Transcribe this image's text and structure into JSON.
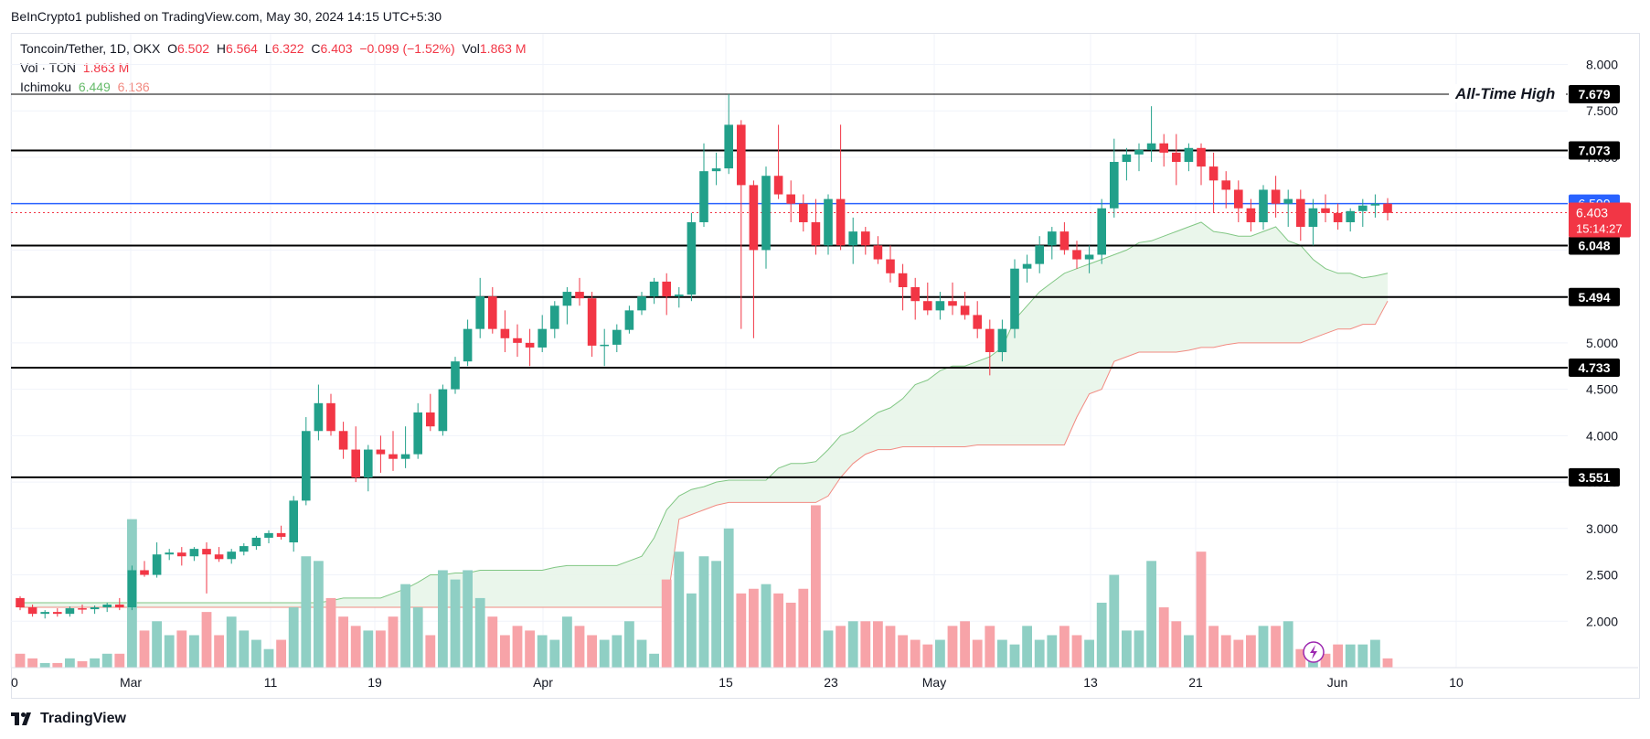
{
  "attribution": "BeInCrypto1 published on TradingView.com, May 30, 2024 14:15 UTC+5:30",
  "legend": {
    "symbol": "Toncoin/Tether, 1D, OKX",
    "open_label": "O",
    "open": "6.502",
    "high_label": "H",
    "high": "6.564",
    "low_label": "L",
    "low": "6.322",
    "close_label": "C",
    "close": "6.403",
    "change": "−0.099 (−1.52%)",
    "vol_label": "Vol",
    "vol": "1.863 M",
    "vol_series": "Vol · TON",
    "vol_series_value": "1.863 M",
    "ichimoku": "Ichimoku",
    "ichimoku_a": "6.449",
    "ichimoku_b": "6.136"
  },
  "branding": "TradingView",
  "colors": {
    "up": "#22a08a",
    "down": "#f23645",
    "vol_up": "#8fcfc4",
    "vol_down": "#f7a3a8",
    "cloud": "#e8f5e9",
    "span_a": "#81c784",
    "span_b": "#f28b82",
    "ref": "#2962ff"
  },
  "chart_data": {
    "type": "candlestick",
    "title": "Toncoin/Tether, 1D, OKX",
    "ylim": [
      1.5,
      8.33
    ],
    "y_ticks": [
      "8.000",
      "7.500",
      "7.000",
      "6.500",
      "6.000",
      "5.500",
      "5.000",
      "4.500",
      "4.000",
      "3.500",
      "3.000",
      "2.500",
      "2.000"
    ],
    "x_ticks": [
      "0",
      "Mar",
      "11",
      "19",
      "Apr",
      "15",
      "23",
      "May",
      "13",
      "21",
      "Jun",
      "10"
    ],
    "levels": [
      {
        "value": 7.679,
        "label": "7.679",
        "note": "All-Time High"
      },
      {
        "value": 7.073,
        "label": "7.073"
      },
      {
        "value": 6.048,
        "label": "6.048"
      },
      {
        "value": 5.494,
        "label": "5.494"
      },
      {
        "value": 4.733,
        "label": "4.733"
      },
      {
        "value": 3.551,
        "label": "3.551"
      }
    ],
    "reference_line": {
      "value": 6.5,
      "label": "6.500"
    },
    "last_price": {
      "value": 6.403,
      "label": "6.403",
      "countdown": "15:14:27"
    },
    "candles": [
      [
        2.25,
        2.27,
        2.12,
        2.15
      ],
      [
        2.15,
        2.18,
        2.05,
        2.08
      ],
      [
        2.08,
        2.12,
        2.03,
        2.1
      ],
      [
        2.1,
        2.14,
        2.05,
        2.08
      ],
      [
        2.08,
        2.16,
        2.05,
        2.14
      ],
      [
        2.14,
        2.18,
        2.08,
        2.13
      ],
      [
        2.13,
        2.17,
        2.08,
        2.15
      ],
      [
        2.15,
        2.2,
        2.1,
        2.18
      ],
      [
        2.18,
        2.25,
        2.12,
        2.15
      ],
      [
        2.15,
        2.6,
        2.12,
        2.55
      ],
      [
        2.55,
        2.65,
        2.48,
        2.5
      ],
      [
        2.5,
        2.85,
        2.47,
        2.72
      ],
      [
        2.72,
        2.78,
        2.66,
        2.74
      ],
      [
        2.74,
        2.8,
        2.6,
        2.7
      ],
      [
        2.7,
        2.8,
        2.65,
        2.78
      ],
      [
        2.78,
        2.85,
        2.3,
        2.72
      ],
      [
        2.72,
        2.8,
        2.64,
        2.67
      ],
      [
        2.67,
        2.78,
        2.62,
        2.75
      ],
      [
        2.75,
        2.84,
        2.71,
        2.81
      ],
      [
        2.81,
        2.92,
        2.77,
        2.9
      ],
      [
        2.9,
        2.98,
        2.84,
        2.95
      ],
      [
        2.95,
        3.03,
        2.88,
        2.91
      ],
      [
        2.85,
        3.35,
        2.75,
        3.3
      ],
      [
        3.3,
        4.2,
        3.25,
        4.05
      ],
      [
        4.05,
        4.55,
        3.95,
        4.35
      ],
      [
        4.35,
        4.45,
        4.0,
        4.05
      ],
      [
        4.05,
        4.15,
        3.75,
        3.85
      ],
      [
        3.85,
        4.1,
        3.5,
        3.55
      ],
      [
        3.55,
        3.9,
        3.4,
        3.85
      ],
      [
        3.85,
        4.0,
        3.6,
        3.8
      ],
      [
        3.8,
        4.05,
        3.62,
        3.75
      ],
      [
        3.75,
        4.1,
        3.65,
        3.8
      ],
      [
        3.8,
        4.35,
        3.75,
        4.25
      ],
      [
        4.25,
        4.45,
        4.05,
        4.1
      ],
      [
        4.05,
        4.55,
        4.0,
        4.5
      ],
      [
        4.5,
        4.85,
        4.45,
        4.8
      ],
      [
        4.8,
        5.25,
        4.75,
        5.15
      ],
      [
        5.15,
        5.7,
        5.05,
        5.5
      ],
      [
        5.5,
        5.6,
        5.1,
        5.15
      ],
      [
        5.15,
        5.35,
        4.9,
        5.05
      ],
      [
        5.05,
        5.2,
        4.85,
        5.0
      ],
      [
        5.0,
        5.15,
        4.75,
        4.95
      ],
      [
        4.95,
        5.3,
        4.9,
        5.15
      ],
      [
        5.15,
        5.45,
        5.05,
        5.4
      ],
      [
        5.4,
        5.6,
        5.2,
        5.55
      ],
      [
        5.55,
        5.7,
        5.4,
        5.48
      ],
      [
        5.48,
        5.55,
        4.85,
        4.97
      ],
      [
        4.97,
        5.15,
        4.75,
        4.98
      ],
      [
        4.98,
        5.2,
        4.9,
        5.14
      ],
      [
        5.14,
        5.4,
        5.1,
        5.35
      ],
      [
        5.35,
        5.55,
        5.3,
        5.5
      ],
      [
        5.5,
        5.7,
        5.42,
        5.66
      ],
      [
        5.66,
        5.75,
        5.3,
        5.5
      ],
      [
        5.5,
        5.6,
        5.38,
        5.52
      ],
      [
        5.52,
        6.4,
        5.45,
        6.3
      ],
      [
        6.3,
        7.15,
        6.25,
        6.85
      ],
      [
        6.85,
        7.05,
        6.7,
        6.88
      ],
      [
        6.88,
        7.68,
        6.82,
        7.35
      ],
      [
        7.35,
        7.4,
        5.15,
        6.7
      ],
      [
        6.7,
        6.75,
        5.05,
        6.0
      ],
      [
        6.0,
        6.9,
        5.8,
        6.8
      ],
      [
        6.8,
        7.35,
        6.55,
        6.6
      ],
      [
        6.6,
        6.75,
        6.3,
        6.5
      ],
      [
        6.5,
        6.6,
        6.2,
        6.3
      ],
      [
        6.3,
        6.55,
        5.95,
        6.05
      ],
      [
        6.05,
        6.6,
        5.95,
        6.55
      ],
      [
        6.55,
        7.35,
        6.0,
        6.05
      ],
      [
        6.05,
        6.35,
        5.85,
        6.2
      ],
      [
        6.2,
        6.25,
        5.95,
        6.05
      ],
      [
        6.05,
        6.15,
        5.85,
        5.9
      ],
      [
        5.9,
        6.05,
        5.65,
        5.75
      ],
      [
        5.75,
        5.85,
        5.35,
        5.6
      ],
      [
        5.6,
        5.7,
        5.25,
        5.45
      ],
      [
        5.45,
        5.65,
        5.3,
        5.35
      ],
      [
        5.35,
        5.55,
        5.25,
        5.45
      ],
      [
        5.45,
        5.65,
        5.3,
        5.4
      ],
      [
        5.4,
        5.55,
        5.25,
        5.3
      ],
      [
        5.3,
        5.45,
        5.05,
        5.15
      ],
      [
        5.15,
        5.25,
        4.65,
        4.9
      ],
      [
        4.9,
        5.25,
        4.8,
        5.15
      ],
      [
        5.15,
        5.9,
        5.05,
        5.8
      ],
      [
        5.8,
        5.95,
        5.65,
        5.85
      ],
      [
        5.85,
        6.15,
        5.75,
        6.05
      ],
      [
        6.05,
        6.25,
        5.9,
        6.2
      ],
      [
        6.2,
        6.3,
        5.95,
        6.0
      ],
      [
        6.0,
        6.1,
        5.8,
        5.9
      ],
      [
        5.9,
        6.05,
        5.75,
        5.95
      ],
      [
        5.95,
        6.55,
        5.85,
        6.45
      ],
      [
        6.45,
        7.2,
        6.35,
        6.95
      ],
      [
        6.95,
        7.1,
        6.75,
        7.03
      ],
      [
        7.03,
        7.15,
        6.85,
        7.08
      ],
      [
        7.08,
        7.55,
        6.95,
        7.15
      ],
      [
        7.15,
        7.25,
        6.9,
        7.05
      ],
      [
        7.05,
        7.25,
        6.7,
        6.95
      ],
      [
        6.95,
        7.15,
        6.85,
        7.1
      ],
      [
        7.1,
        7.15,
        6.7,
        6.9
      ],
      [
        6.9,
        7.05,
        6.4,
        6.75
      ],
      [
        6.75,
        6.85,
        6.45,
        6.65
      ],
      [
        6.65,
        6.75,
        6.3,
        6.45
      ],
      [
        6.45,
        6.55,
        6.2,
        6.3
      ],
      [
        6.3,
        6.7,
        6.22,
        6.65
      ],
      [
        6.65,
        6.8,
        6.35,
        6.5
      ],
      [
        6.5,
        6.65,
        6.25,
        6.55
      ],
      [
        6.55,
        6.65,
        6.1,
        6.25
      ],
      [
        6.25,
        6.55,
        6.05,
        6.45
      ],
      [
        6.45,
        6.6,
        6.3,
        6.4
      ],
      [
        6.4,
        6.5,
        6.22,
        6.3
      ],
      [
        6.3,
        6.45,
        6.2,
        6.42
      ],
      [
        6.42,
        6.55,
        6.25,
        6.48
      ],
      [
        6.48,
        6.6,
        6.35,
        6.5
      ],
      [
        6.5,
        6.56,
        6.32,
        6.4
      ]
    ],
    "volume": [
      1.65,
      1.6,
      1.55,
      1.55,
      1.6,
      1.57,
      1.6,
      1.65,
      1.65,
      3.1,
      1.9,
      2.0,
      1.85,
      1.9,
      1.85,
      2.1,
      1.85,
      2.05,
      1.9,
      1.8,
      1.7,
      1.8,
      2.15,
      2.7,
      2.65,
      2.25,
      2.05,
      1.95,
      1.9,
      1.9,
      2.05,
      2.4,
      2.15,
      1.85,
      2.55,
      2.45,
      2.55,
      2.25,
      2.05,
      1.85,
      1.95,
      1.9,
      1.85,
      1.8,
      2.05,
      1.95,
      1.85,
      1.8,
      1.85,
      2.0,
      1.8,
      1.65,
      2.45,
      2.75,
      2.3,
      2.7,
      2.65,
      3.0,
      2.3,
      2.35,
      2.4,
      2.3,
      2.2,
      2.35,
      3.25,
      1.9,
      1.95,
      2.0,
      2.0,
      2.0,
      1.95,
      1.85,
      1.8,
      1.75,
      1.8,
      1.95,
      2.0,
      1.8,
      1.95,
      1.8,
      1.75,
      1.95,
      1.8,
      1.85,
      1.95,
      1.85,
      1.8,
      2.2,
      2.5,
      1.9,
      1.9,
      2.65,
      2.15,
      2.0,
      1.85,
      2.75,
      1.95,
      1.85,
      1.8,
      1.85,
      1.95,
      1.95,
      2.0,
      1.7,
      1.65,
      1.65,
      1.75,
      1.75,
      1.75,
      1.8,
      1.6
    ],
    "cloud_top": [
      2.2,
      2.2,
      2.2,
      2.2,
      2.2,
      2.2,
      2.2,
      2.2,
      2.2,
      2.2,
      2.2,
      2.2,
      2.2,
      2.2,
      2.2,
      2.2,
      2.2,
      2.2,
      2.2,
      2.2,
      2.2,
      2.2,
      2.2,
      2.2,
      2.2,
      2.22,
      2.25,
      2.25,
      2.25,
      2.25,
      2.3,
      2.35,
      2.42,
      2.5,
      2.5,
      2.52,
      2.52,
      2.55,
      2.55,
      2.55,
      2.55,
      2.55,
      2.55,
      2.58,
      2.6,
      2.6,
      2.6,
      2.6,
      2.6,
      2.65,
      2.7,
      2.9,
      3.2,
      3.35,
      3.42,
      3.45,
      3.5,
      3.52,
      3.52,
      3.52,
      3.52,
      3.65,
      3.7,
      3.7,
      3.72,
      3.85,
      4.0,
      4.05,
      4.15,
      4.25,
      4.3,
      4.4,
      4.55,
      4.6,
      4.7,
      4.75,
      4.75,
      4.8,
      4.85,
      4.95,
      5.25,
      5.4,
      5.55,
      5.65,
      5.75,
      5.8,
      5.85,
      5.9,
      5.95,
      6.0,
      6.08,
      6.1,
      6.15,
      6.2,
      6.25,
      6.3,
      6.2,
      6.18,
      6.15,
      6.15,
      6.2,
      6.25,
      6.1,
      6.05,
      5.9,
      5.8,
      5.75,
      5.75,
      5.7,
      5.72,
      5.75
    ],
    "cloud_bottom": [
      2.15,
      2.15,
      2.15,
      2.15,
      2.15,
      2.15,
      2.15,
      2.15,
      2.15,
      2.15,
      2.15,
      2.15,
      2.15,
      2.15,
      2.15,
      2.15,
      2.15,
      2.15,
      2.15,
      2.15,
      2.15,
      2.15,
      2.15,
      2.15,
      2.15,
      2.15,
      2.15,
      2.15,
      2.15,
      2.15,
      2.15,
      2.15,
      2.15,
      2.15,
      2.15,
      2.15,
      2.15,
      2.15,
      2.15,
      2.15,
      2.15,
      2.15,
      2.15,
      2.15,
      2.15,
      2.15,
      2.15,
      2.15,
      2.15,
      2.15,
      2.15,
      2.15,
      2.15,
      3.1,
      3.15,
      3.2,
      3.25,
      3.28,
      3.28,
      3.28,
      3.28,
      3.28,
      3.28,
      3.28,
      3.28,
      3.35,
      3.55,
      3.7,
      3.8,
      3.85,
      3.85,
      3.88,
      3.88,
      3.88,
      3.88,
      3.88,
      3.88,
      3.9,
      3.9,
      3.9,
      3.9,
      3.9,
      3.9,
      3.9,
      3.9,
      4.2,
      4.45,
      4.5,
      4.8,
      4.85,
      4.9,
      4.9,
      4.9,
      4.9,
      4.92,
      4.95,
      4.95,
      4.98,
      5.0,
      5.0,
      5.0,
      5.0,
      5.0,
      5.0,
      5.05,
      5.1,
      5.15,
      5.15,
      5.2,
      5.2,
      5.45
    ]
  }
}
